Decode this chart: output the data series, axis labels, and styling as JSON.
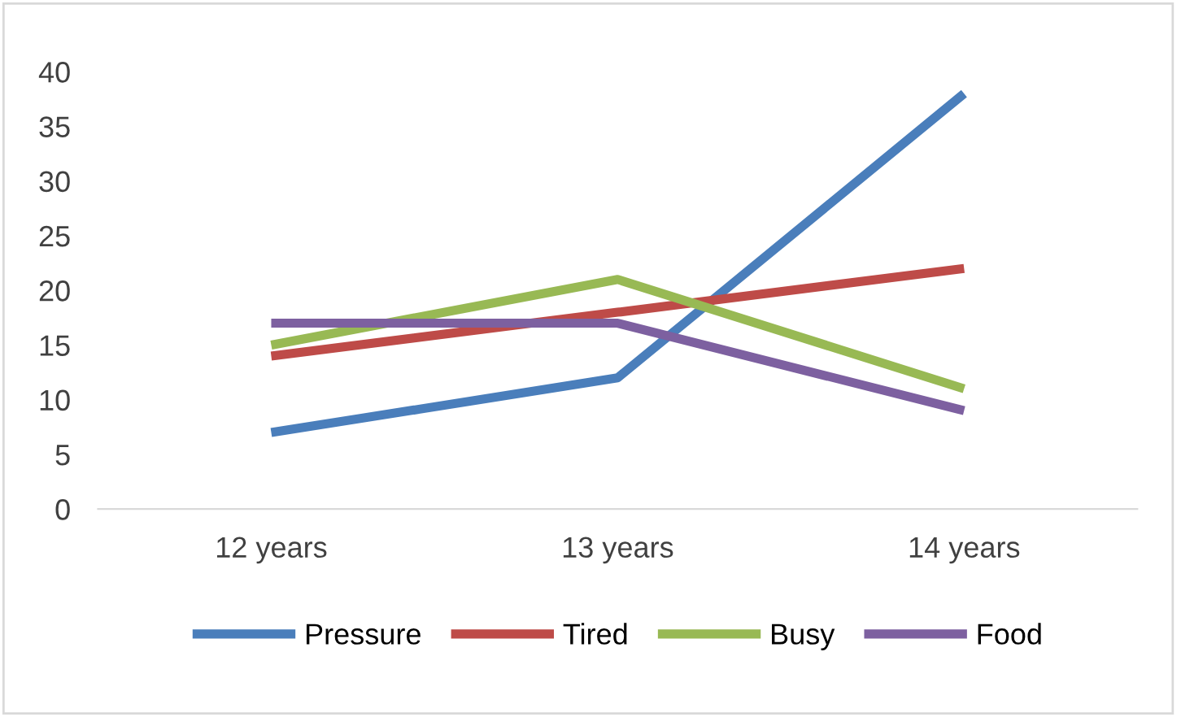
{
  "chart_data": {
    "type": "line",
    "categories": [
      "12 years",
      "13 years",
      "14 years"
    ],
    "series": [
      {
        "name": "Pressure",
        "color": "#4a7ebb",
        "values": [
          7,
          12,
          38
        ]
      },
      {
        "name": "Tired",
        "color": "#be4b48",
        "values": [
          14,
          18,
          22
        ]
      },
      {
        "name": "Busy",
        "color": "#98b954",
        "values": [
          15,
          21,
          11
        ]
      },
      {
        "name": "Food",
        "color": "#7d60a0",
        "values": [
          17,
          17,
          9
        ]
      }
    ],
    "ylim": [
      0,
      40
    ],
    "yticks": [
      0,
      5,
      10,
      15,
      20,
      25,
      30,
      35,
      40
    ],
    "grid": false,
    "legend": "bottom",
    "marker": "none",
    "line_style": "solid"
  }
}
